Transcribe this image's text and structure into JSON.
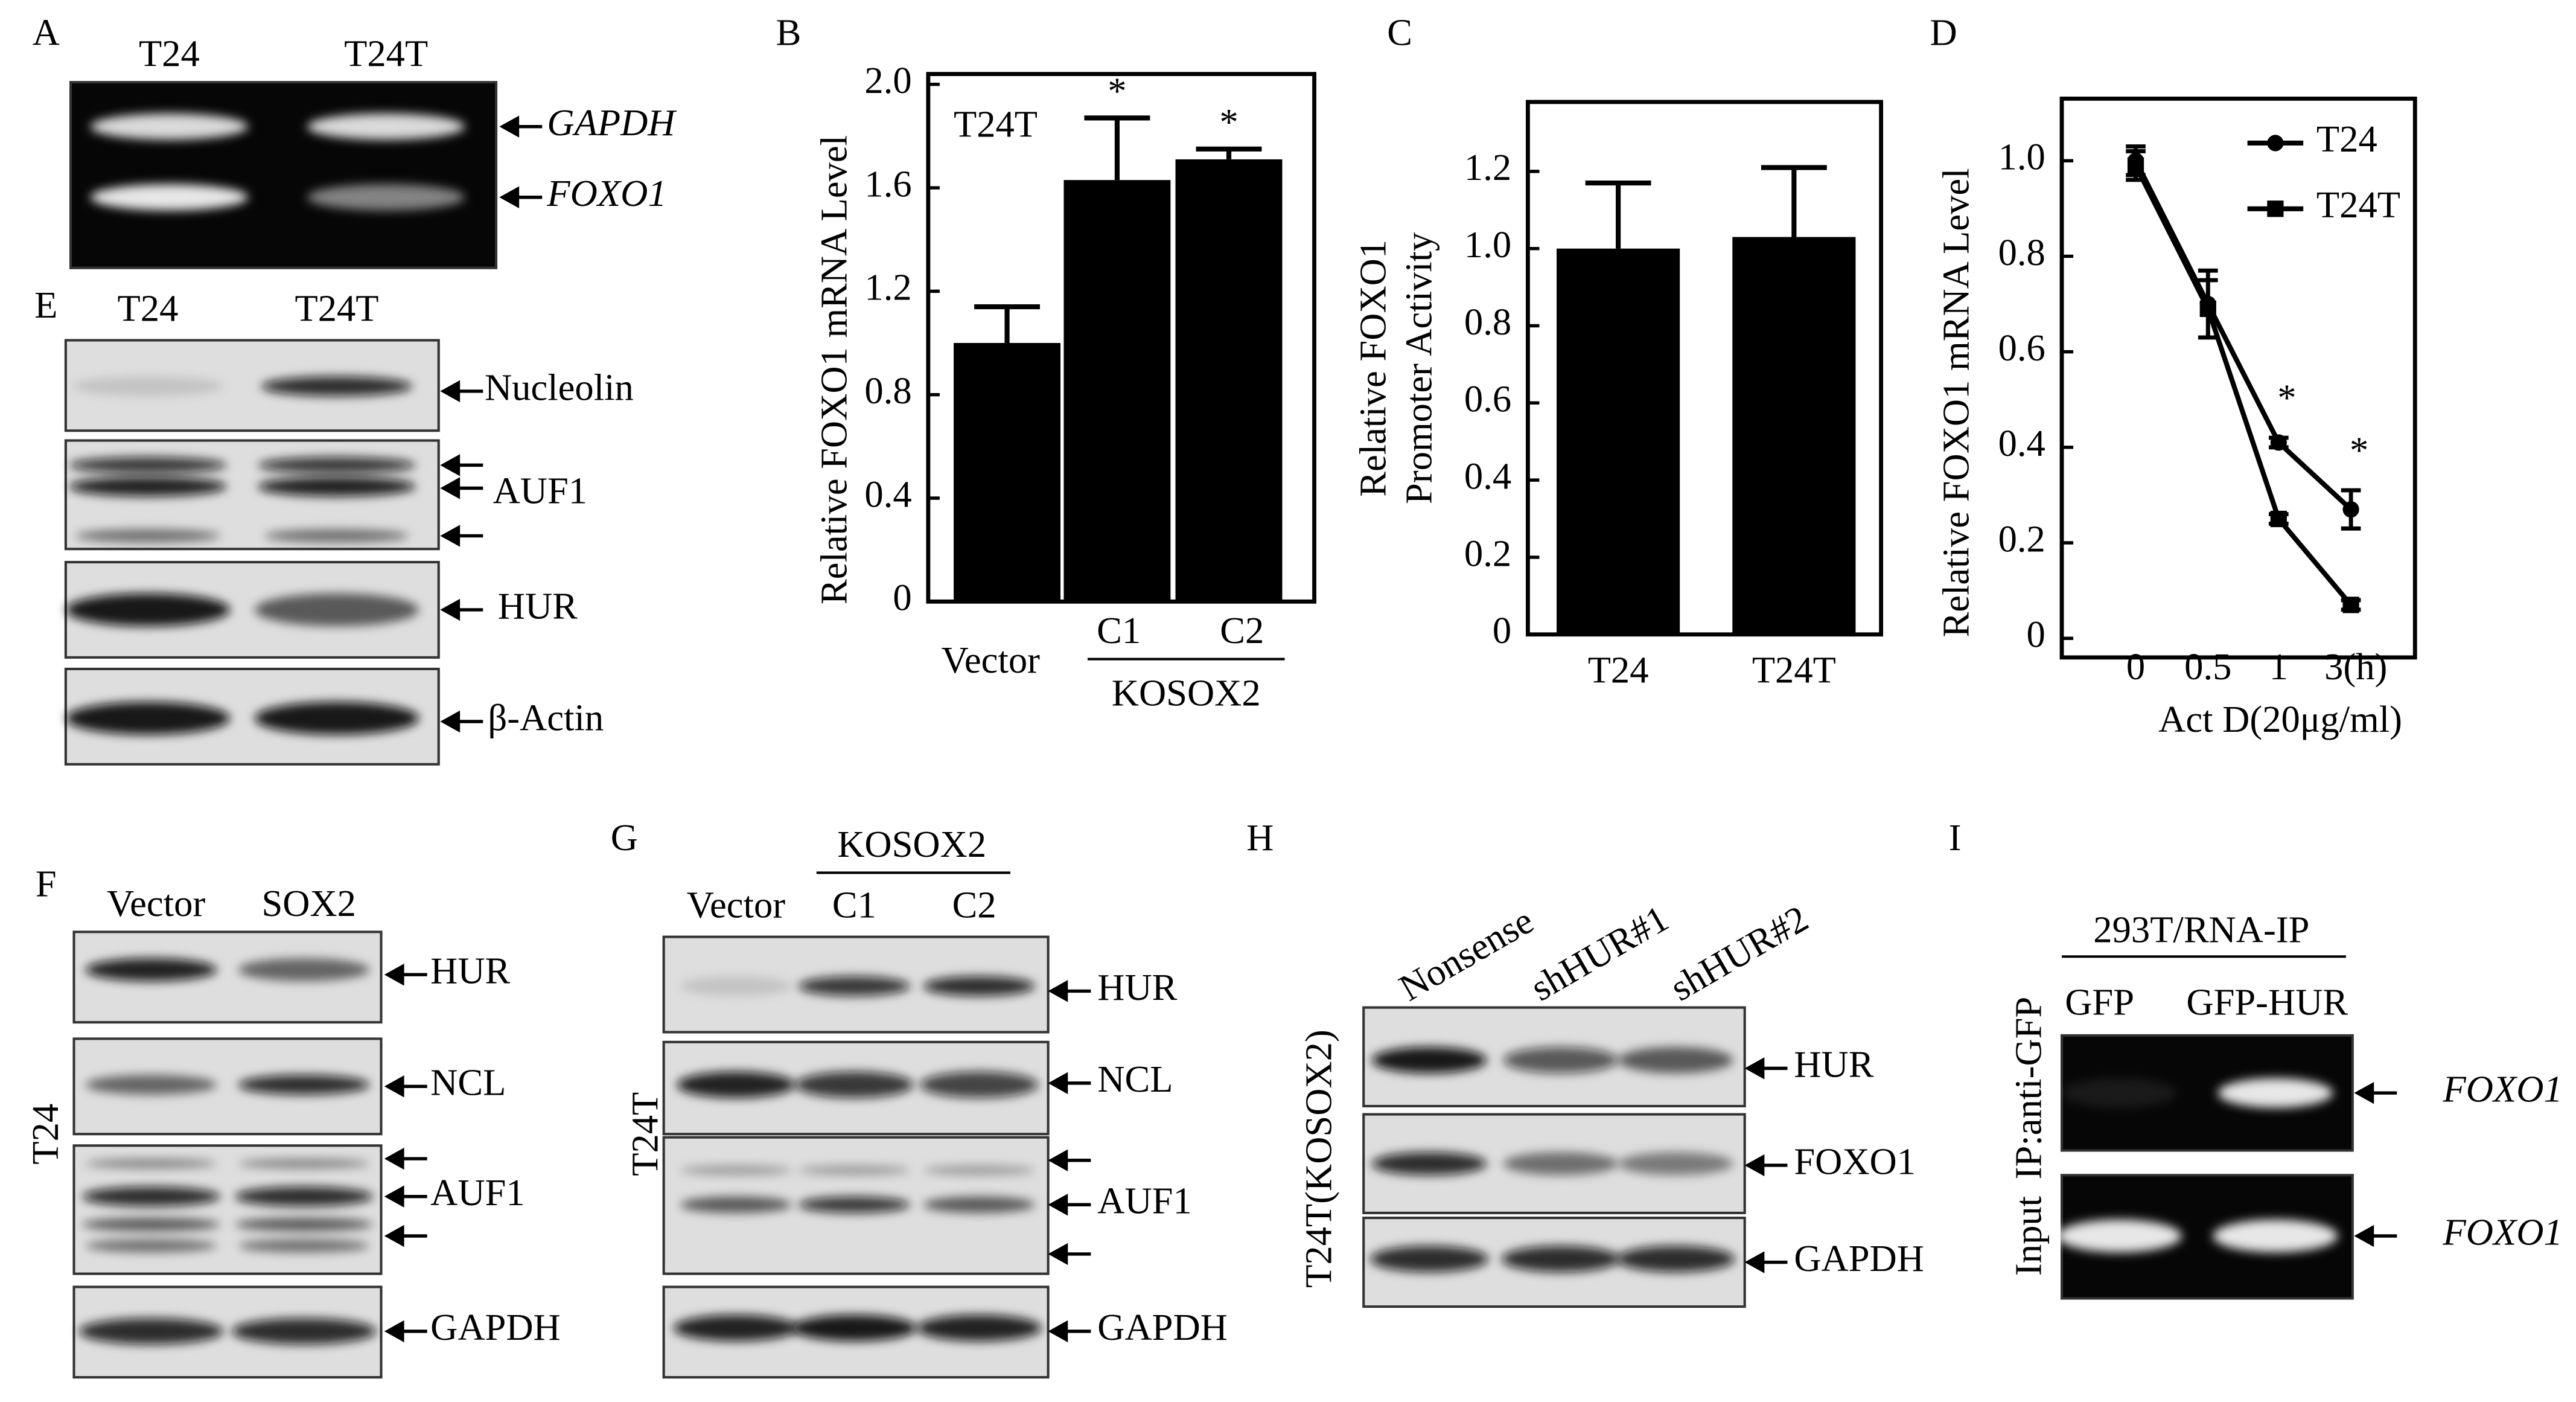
{
  "panel_A": {
    "letter": "A",
    "lanes": [
      "T24",
      "T24T"
    ],
    "bands": [
      "GAPDH",
      "FOXO1"
    ]
  },
  "panel_E": {
    "letter": "E",
    "lanes": [
      "T24",
      "T24T"
    ],
    "bands": [
      "Nucleolin",
      "AUF1",
      "HUR",
      "β-Actin"
    ]
  },
  "panel_F": {
    "letter": "F",
    "cell_line": "T24",
    "lanes": [
      "Vector",
      "SOX2"
    ],
    "bands": [
      "HUR",
      "NCL",
      "AUF1",
      "GAPDH"
    ]
  },
  "panel_G": {
    "letter": "G",
    "cell_line": "T24T",
    "group": "KOSOX2",
    "lanes": [
      "Vector",
      "C1",
      "C2"
    ],
    "bands": [
      "HUR",
      "NCL",
      "AUF1",
      "GAPDH"
    ]
  },
  "panel_H": {
    "letter": "H",
    "cell_line": "T24T(KOSOX2)",
    "lanes": [
      "Nonsense",
      "shHUR#1",
      "shHUR#2"
    ],
    "bands": [
      "HUR",
      "FOXO1",
      "GAPDH"
    ]
  },
  "panel_I": {
    "letter": "I",
    "experiment": "293T/RNA-IP",
    "lanes": [
      "GFP",
      "GFP-HUR"
    ],
    "rows": [
      "IP:anti-GFP",
      "Input"
    ],
    "bands": [
      "FOXO1",
      "FOXO1"
    ]
  },
  "chart_data": [
    {
      "type": "bar",
      "panel_letter": "B",
      "ylabel": "Relative FOXO1 mRNA Level",
      "inset_label": "T24T",
      "categories": [
        "Vector",
        "C1",
        "C2"
      ],
      "category_group": "KOSOX2",
      "values": [
        1.0,
        1.63,
        1.71
      ],
      "errors": [
        0.14,
        0.24,
        0.04
      ],
      "value_annotations": [
        null,
        "*",
        "*"
      ],
      "color": "#000000",
      "ylim": [
        0,
        2.04
      ],
      "yticks": [
        0,
        0.4,
        0.8,
        1.2,
        1.6,
        {
          "value": 2,
          "label": "2.0"
        }
      ],
      "grid": false
    },
    {
      "type": "bar",
      "panel_letter": "C",
      "ylabel": [
        "Relative FOXO1",
        "Promoter Activity"
      ],
      "categories": [
        "T24",
        "T24T"
      ],
      "values": [
        1.0,
        1.03
      ],
      "errors": [
        0.17,
        0.18
      ],
      "color": "#000000",
      "ylim": [
        0,
        1.38
      ],
      "yticks": [
        0,
        0.2,
        0.4,
        0.6,
        0.8,
        {
          "value": 1,
          "label": "1.0"
        },
        1.2
      ],
      "grid": false
    },
    {
      "type": "line",
      "panel_letter": "D",
      "ylabel": "Relative FOXO1 mRNA Level",
      "xlabel": "Act D(20μg/ml)",
      "categories": [
        "0",
        "0.5",
        "1",
        "3(h)"
      ],
      "series": [
        {
          "name": "T24",
          "color": "#000000",
          "marker": "circle",
          "values": [
            1.0,
            0.7,
            0.41,
            0.27
          ],
          "errors": [
            0.03,
            0.07,
            0.01,
            0.04
          ],
          "annotations": [
            null,
            null,
            "*",
            "*"
          ]
        },
        {
          "name": "T24T",
          "color": "#000000",
          "marker": "square",
          "values": [
            0.99,
            0.69,
            0.25,
            0.07
          ],
          "errors": [
            0.03,
            0.06,
            0.01,
            0.01
          ]
        }
      ],
      "ylim": [
        -0.04,
        1.13
      ],
      "yticks": [
        0,
        0.2,
        0.4,
        0.6,
        0.8,
        {
          "value": 1,
          "label": "1.0"
        }
      ],
      "legend": "upper right",
      "grid": false
    }
  ]
}
